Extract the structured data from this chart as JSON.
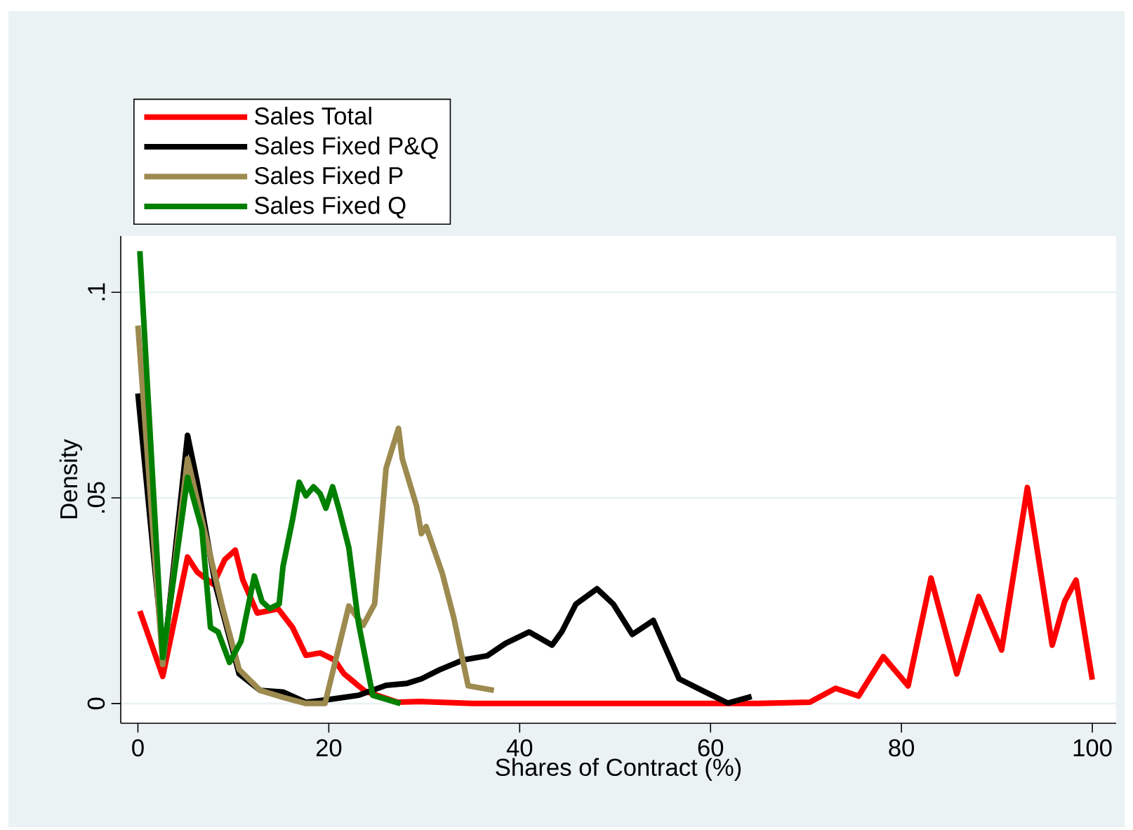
{
  "chart_data": {
    "type": "line",
    "xlabel": "Shares of Contract (%)",
    "ylabel": "Density",
    "xlim": [
      -1.8,
      102.5
    ],
    "ylim": [
      -0.0048,
      0.1137
    ],
    "xticks": [
      0,
      20,
      40,
      60,
      80,
      100
    ],
    "yticks": [
      0,
      {
        "value": 0.05,
        "label": ".05"
      },
      {
        "value": 0.1,
        "label": ".1"
      }
    ],
    "grid": "y",
    "legend": "top left",
    "series": [
      {
        "name": "Sales Total",
        "color": "#ff0000",
        "x": [
          0.2,
          2.6,
          5.2,
          6.2,
          7.9,
          9.1,
          10.2,
          11,
          12.5,
          14.7,
          16.2,
          17.6,
          19.1,
          20.6,
          21.6,
          23.8,
          27.2,
          29.5,
          35,
          45,
          55,
          65,
          70.4,
          73.1,
          75.5,
          78.1,
          80.7,
          83.1,
          85.8,
          88.1,
          90.5,
          93.2,
          95.8,
          97.1,
          98.3,
          100
        ],
        "values": [
          0.0225,
          0.0066,
          0.0356,
          0.032,
          0.029,
          0.035,
          0.0373,
          0.03,
          0.022,
          0.023,
          0.0185,
          0.0117,
          0.0123,
          0.0106,
          0.0072,
          0.003,
          0.0003,
          0.0005,
          0,
          0,
          0,
          0,
          0.0003,
          0.0037,
          0.0018,
          0.0114,
          0.0043,
          0.0305,
          0.0072,
          0.026,
          0.013,
          0.0525,
          0.0142,
          0.0248,
          0.03,
          0.0058
        ]
      },
      {
        "name": "Sales Fixed P&Q",
        "color": "#000000",
        "x": [
          0,
          2.7,
          5.2,
          6.2,
          8.1,
          10.6,
          12.8,
          15.2,
          17.6,
          20.1,
          23.1,
          26,
          28.2,
          29.7,
          31.6,
          34.1,
          36.6,
          38.5,
          41,
          43.4,
          44.4,
          45.9,
          48.1,
          49.8,
          51.8,
          54,
          56.7,
          59.1,
          61.8,
          64.3
        ],
        "values": [
          0.0754,
          0.0106,
          0.0652,
          0.054,
          0.029,
          0.0072,
          0.0032,
          0.0028,
          0.0003,
          0.001,
          0.002,
          0.0044,
          0.0049,
          0.006,
          0.0082,
          0.0106,
          0.0116,
          0.0146,
          0.0174,
          0.0142,
          0.0174,
          0.0242,
          0.0279,
          0.0242,
          0.0168,
          0.0202,
          0.006,
          0.0032,
          0.0001,
          0.0017
        ]
      },
      {
        "name": "Sales Fixed P",
        "color": "#9c8a4f",
        "x": [
          0,
          2.6,
          5.2,
          6.7,
          8.9,
          10.6,
          12.8,
          15.2,
          17.6,
          19.6,
          22.1,
          23.6,
          24.8,
          26,
          27.3,
          27.7,
          29.2,
          29.7,
          30.2,
          31.9,
          33.1,
          34.6,
          37.3
        ],
        "values": [
          0.0919,
          0.0095,
          0.0595,
          0.0447,
          0.023,
          0.0083,
          0.0032,
          0.0015,
          0,
          0,
          0.0237,
          0.019,
          0.0242,
          0.0572,
          0.0669,
          0.0595,
          0.048,
          0.0413,
          0.043,
          0.0316,
          0.0208,
          0.0043,
          0.0032
        ]
      },
      {
        "name": "Sales Fixed Q",
        "color": "#008000",
        "x": [
          0.2,
          2.6,
          5.2,
          6.7,
          7.6,
          8.4,
          9.6,
          10.8,
          12.2,
          13,
          13.8,
          14.8,
          15.2,
          16.2,
          16.9,
          17.6,
          18.4,
          19.1,
          19.7,
          20.4,
          21.1,
          22.1,
          23.1,
          24.6,
          27.5
        ],
        "values": [
          0.11,
          0.0112,
          0.055,
          0.0424,
          0.0185,
          0.0174,
          0.01,
          0.0151,
          0.031,
          0.0248,
          0.0231,
          0.0242,
          0.0333,
          0.0447,
          0.0538,
          0.0505,
          0.0527,
          0.051,
          0.0475,
          0.0527,
          0.047,
          0.0379,
          0.0197,
          0.002,
          0
        ]
      }
    ]
  }
}
